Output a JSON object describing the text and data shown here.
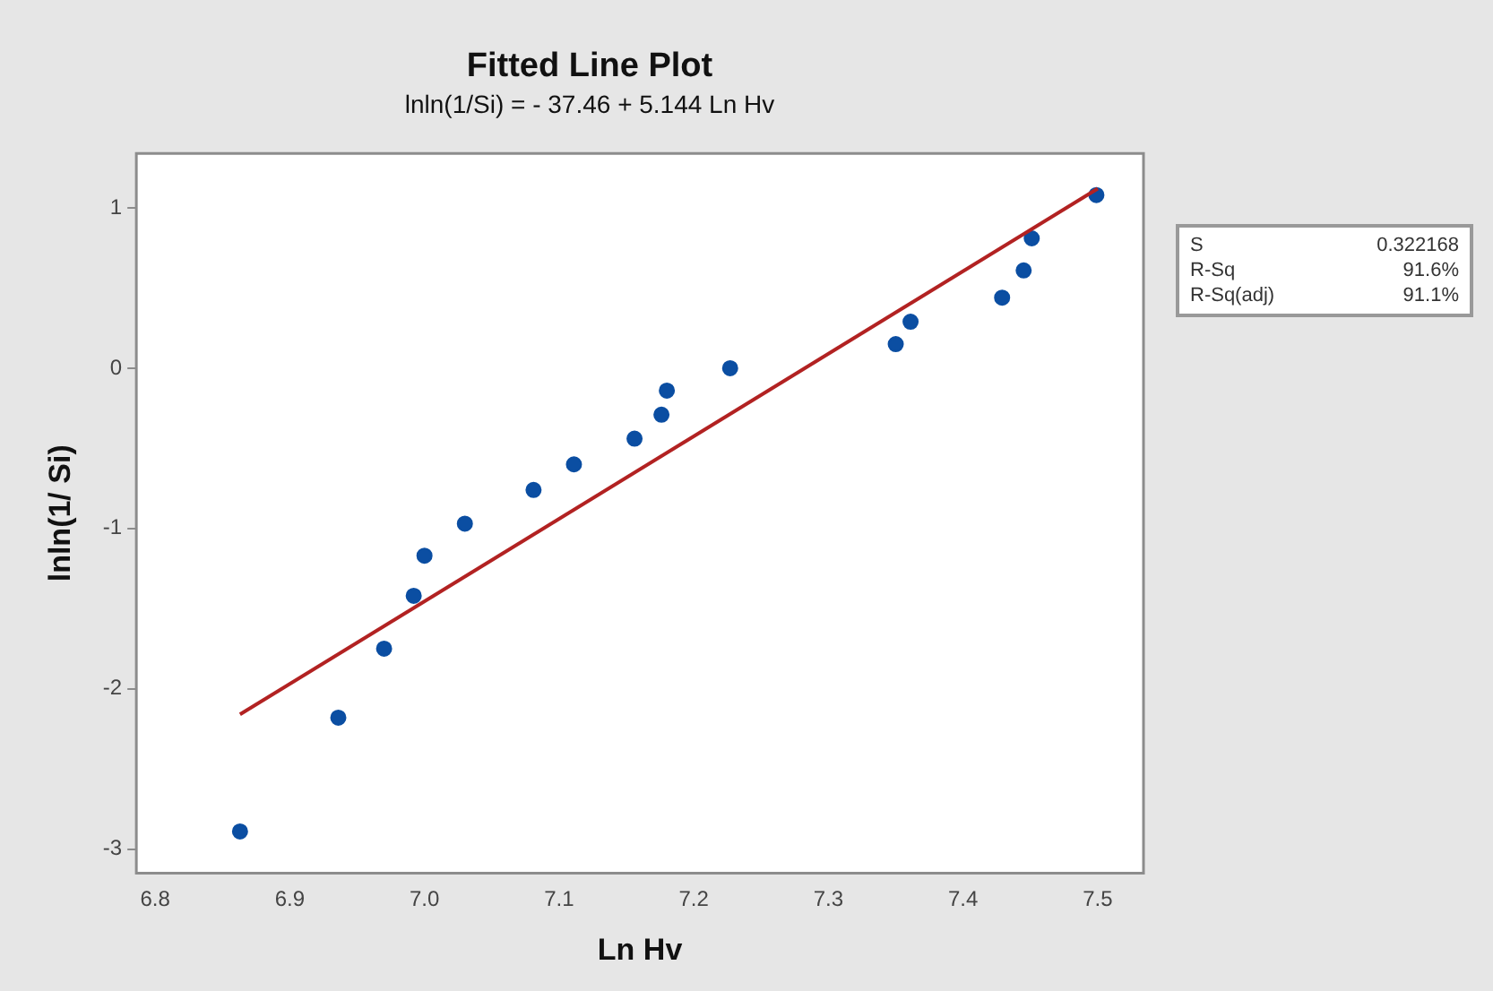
{
  "chart_data": {
    "type": "scatter",
    "title": "Fitted Line Plot",
    "subtitle": "lnln(1/Si) = - 37.46 + 5.144 Ln Hv",
    "xlabel": "Ln Hv",
    "ylabel": "lnln(1/ Si)",
    "series": [
      {
        "color": "#0b4ea2",
        "marker": "circle",
        "x": [
          6.863,
          6.936,
          6.97,
          6.992,
          7.0,
          7.03,
          7.081,
          7.111,
          7.156,
          7.176,
          7.18,
          7.227,
          7.35,
          7.361,
          7.429,
          7.445,
          7.451,
          7.499
        ],
        "values": [
          -2.89,
          -2.18,
          -1.75,
          -1.42,
          -1.17,
          -0.97,
          -0.76,
          -0.6,
          -0.44,
          -0.29,
          -0.14,
          0.0,
          0.15,
          0.29,
          0.44,
          0.61,
          0.81,
          1.08
        ]
      },
      {
        "type": "line",
        "color": "#b22222",
        "marker": "none",
        "x": [
          6.863,
          7.5
        ],
        "values": [
          -2.16,
          1.12
        ]
      }
    ],
    "xlim": [
      6.786,
      7.534
    ],
    "xticks": [
      {
        "value": 6.8,
        "label": "6.8"
      },
      {
        "value": 6.9,
        "label": "6.9"
      },
      {
        "value": 7.0,
        "label": "7.0"
      },
      {
        "value": 7.1,
        "label": "7.1"
      },
      {
        "value": 7.2,
        "label": "7.2"
      },
      {
        "value": 7.3,
        "label": "7.3"
      },
      {
        "value": 7.4,
        "label": "7.4"
      },
      {
        "value": 7.5,
        "label": "7.5"
      }
    ],
    "ylim": [
      -3.15,
      1.34
    ],
    "yticks": [
      -3,
      -2,
      -1,
      0,
      1
    ],
    "grid": false,
    "legend": false,
    "annotations": [
      "S 0.322168",
      "R-Sq 91.6%",
      "R-Sq(adj) 91.1%"
    ]
  }
}
